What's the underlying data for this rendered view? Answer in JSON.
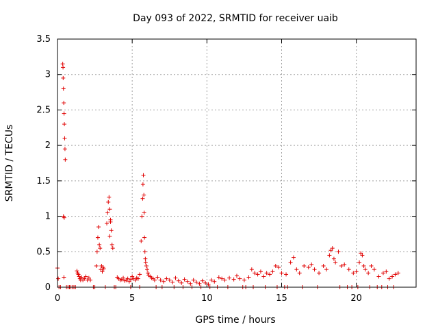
{
  "chart_data": {
    "type": "scatter",
    "title": "Day 093 of 2022, SRMTID for receiver uaib",
    "xlabel": "GPS time / hours",
    "ylabel": "SRMTID / TECUs",
    "xlim": [
      0,
      24
    ],
    "ylim": [
      0,
      3.5
    ],
    "xticks": [
      0,
      5,
      10,
      15,
      20
    ],
    "yticks": [
      0,
      0.5,
      1,
      1.5,
      2,
      2.5,
      3,
      3.5
    ],
    "xtick_labels": [
      "0",
      "5",
      "10",
      "15",
      "20"
    ],
    "ytick_labels": [
      "0",
      "0.5",
      "1",
      "1.5",
      "2",
      "2.5",
      "3",
      "3.5"
    ],
    "grid": true,
    "marker": "+",
    "color": "#e00000",
    "series": [
      {
        "name": "SRMTID",
        "x": [
          0.0,
          0.05,
          0.1,
          0.35,
          0.37,
          0.38,
          0.4,
          0.42,
          0.44,
          0.46,
          0.48,
          0.5,
          0.52,
          0.4,
          0.43,
          0.45,
          0.7,
          0.9,
          1.1,
          1.3,
          1.35,
          1.4,
          1.45,
          1.5,
          1.55,
          1.6,
          1.7,
          1.8,
          1.9,
          2.0,
          2.1,
          2.2,
          2.6,
          2.65,
          2.7,
          2.75,
          2.8,
          2.85,
          2.9,
          2.95,
          3.0,
          3.05,
          3.1,
          3.3,
          3.35,
          3.4,
          3.45,
          3.5,
          3.55,
          3.6,
          3.65,
          3.7,
          3.5,
          3.55,
          4.0,
          4.1,
          4.2,
          4.3,
          4.4,
          4.5,
          4.6,
          4.7,
          4.8,
          4.9,
          5.0,
          5.1,
          5.2,
          5.3,
          5.4,
          5.5,
          5.6,
          5.65,
          5.7,
          5.72,
          5.75,
          5.78,
          5.8,
          5.82,
          5.85,
          5.88,
          5.9,
          5.95,
          6.0,
          6.05,
          6.1,
          6.2,
          6.3,
          6.4,
          6.5,
          6.7,
          6.9,
          7.1,
          7.3,
          7.5,
          7.7,
          7.9,
          8.1,
          8.3,
          8.5,
          8.7,
          8.9,
          9.1,
          9.3,
          9.5,
          9.7,
          9.9,
          10.1,
          10.3,
          10.5,
          10.8,
          11.0,
          11.2,
          11.5,
          11.8,
          12.0,
          12.2,
          12.5,
          12.8,
          13.0,
          13.2,
          13.4,
          13.6,
          13.8,
          14.0,
          14.2,
          14.4,
          14.6,
          14.8,
          15.0,
          15.3,
          15.6,
          15.8,
          16.0,
          16.2,
          16.5,
          16.8,
          17.0,
          17.2,
          17.5,
          17.8,
          18.0,
          18.2,
          18.3,
          18.4,
          18.5,
          18.6,
          18.8,
          19.0,
          19.2,
          19.5,
          19.8,
          20.0,
          20.2,
          20.3,
          20.4,
          20.5,
          20.6,
          20.8,
          21.0,
          21.2,
          21.5,
          21.8,
          22.0,
          22.2,
          22.4,
          22.6,
          22.8,
          0.2,
          0.6,
          0.8,
          1.0,
          1.2,
          2.4,
          2.5,
          3.2,
          3.8,
          3.9,
          4.9,
          5.5,
          6.6,
          7.0,
          7.8,
          8.4,
          9.0,
          9.6,
          10.2,
          10.7,
          11.4,
          12.4,
          12.6,
          13.1,
          13.9,
          14.7,
          15.2,
          15.4,
          16.4,
          17.4,
          18.9,
          19.4,
          19.7,
          20.1,
          20.9,
          21.4,
          21.7,
          22.1,
          22.5
        ],
        "y": [
          0.27,
          0.12,
          0.0,
          3.15,
          3.1,
          2.95,
          2.8,
          2.6,
          2.45,
          2.3,
          2.1,
          1.95,
          1.8,
          1.0,
          0.14,
          0.98,
          0.0,
          0.0,
          0.0,
          0.23,
          0.2,
          0.18,
          0.15,
          0.12,
          0.1,
          0.14,
          0.1,
          0.12,
          0.15,
          0.1,
          0.13,
          0.1,
          0.3,
          0.5,
          0.7,
          0.85,
          0.6,
          0.55,
          0.25,
          0.3,
          0.22,
          0.28,
          0.26,
          0.9,
          1.05,
          1.2,
          1.27,
          1.1,
          0.95,
          0.8,
          0.6,
          0.55,
          0.72,
          0.92,
          0.14,
          0.12,
          0.1,
          0.11,
          0.13,
          0.09,
          0.1,
          0.12,
          0.08,
          0.11,
          0.15,
          0.12,
          0.1,
          0.13,
          0.12,
          0.18,
          0.65,
          1.0,
          1.25,
          1.45,
          1.58,
          1.3,
          1.05,
          0.7,
          0.5,
          0.4,
          0.35,
          0.3,
          0.25,
          0.2,
          0.17,
          0.15,
          0.13,
          0.12,
          0.1,
          0.14,
          0.1,
          0.08,
          0.12,
          0.1,
          0.07,
          0.13,
          0.09,
          0.06,
          0.11,
          0.08,
          0.05,
          0.1,
          0.07,
          0.05,
          0.09,
          0.06,
          0.04,
          0.1,
          0.08,
          0.14,
          0.12,
          0.1,
          0.13,
          0.11,
          0.16,
          0.12,
          0.1,
          0.14,
          0.25,
          0.2,
          0.18,
          0.22,
          0.15,
          0.2,
          0.18,
          0.22,
          0.3,
          0.28,
          0.2,
          0.18,
          0.35,
          0.42,
          0.25,
          0.2,
          0.3,
          0.28,
          0.32,
          0.25,
          0.2,
          0.3,
          0.25,
          0.45,
          0.52,
          0.55,
          0.4,
          0.35,
          0.5,
          0.3,
          0.32,
          0.25,
          0.2,
          0.22,
          0.35,
          0.48,
          0.45,
          0.3,
          0.25,
          0.2,
          0.3,
          0.25,
          0.15,
          0.2,
          0.22,
          0.12,
          0.15,
          0.18,
          0.2,
          0.0,
          0.0,
          0.0,
          0.0,
          0.0,
          0.0,
          0.0,
          0.0,
          0.0,
          0.0,
          0.0,
          0.0,
          0.0,
          0.0,
          0.0,
          0.0,
          0.0,
          0.0,
          0.0,
          0.0,
          0.0,
          0.0,
          0.0,
          0.0,
          0.0,
          0.0,
          0.0,
          0.0,
          0.0,
          0.0,
          0.0,
          0.0,
          0.0,
          0.0,
          0.0,
          0.0,
          0.0,
          0.0,
          0.0
        ]
      }
    ]
  }
}
